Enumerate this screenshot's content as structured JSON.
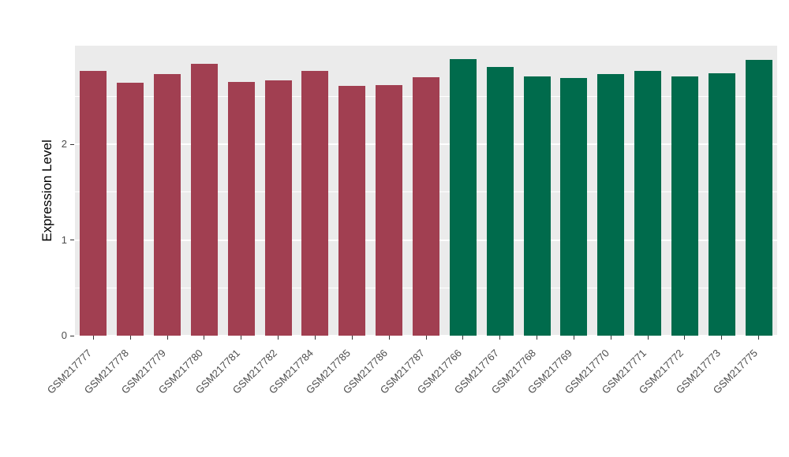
{
  "chart_data": {
    "type": "bar",
    "title": "",
    "xlabel": "",
    "ylabel": "Expression Level",
    "ylim": [
      0,
      3.03
    ],
    "yticks": [
      0,
      1,
      2
    ],
    "minor_gridlines": [
      0.5,
      1.5,
      2.5
    ],
    "grid": true,
    "legend": false,
    "panel_background": "#EBEBEB",
    "gridline_color": "#FFFFFF",
    "categories": [
      "GSM217777",
      "GSM217778",
      "GSM217779",
      "GSM217780",
      "GSM217781",
      "GSM217782",
      "GSM217784",
      "GSM217785",
      "GSM217786",
      "GSM217787",
      "GSM217766",
      "GSM217767",
      "GSM217768",
      "GSM217769",
      "GSM217770",
      "GSM217771",
      "GSM217772",
      "GSM217773",
      "GSM217775"
    ],
    "values": [
      2.77,
      2.64,
      2.73,
      2.84,
      2.65,
      2.67,
      2.77,
      2.61,
      2.62,
      2.7,
      2.89,
      2.81,
      2.71,
      2.69,
      2.73,
      2.77,
      2.71,
      2.74,
      2.88
    ],
    "colors": [
      "#A13F51",
      "#A13F51",
      "#A13F51",
      "#A13F51",
      "#A13F51",
      "#A13F51",
      "#A13F51",
      "#A13F51",
      "#A13F51",
      "#A13F51",
      "#006B4C",
      "#006B4C",
      "#006B4C",
      "#006B4C",
      "#006B4C",
      "#006B4C",
      "#006B4C",
      "#006B4C",
      "#006B4C"
    ],
    "group_colors": {
      "left_group": "#A13F51",
      "right_group": "#006B4C"
    }
  }
}
